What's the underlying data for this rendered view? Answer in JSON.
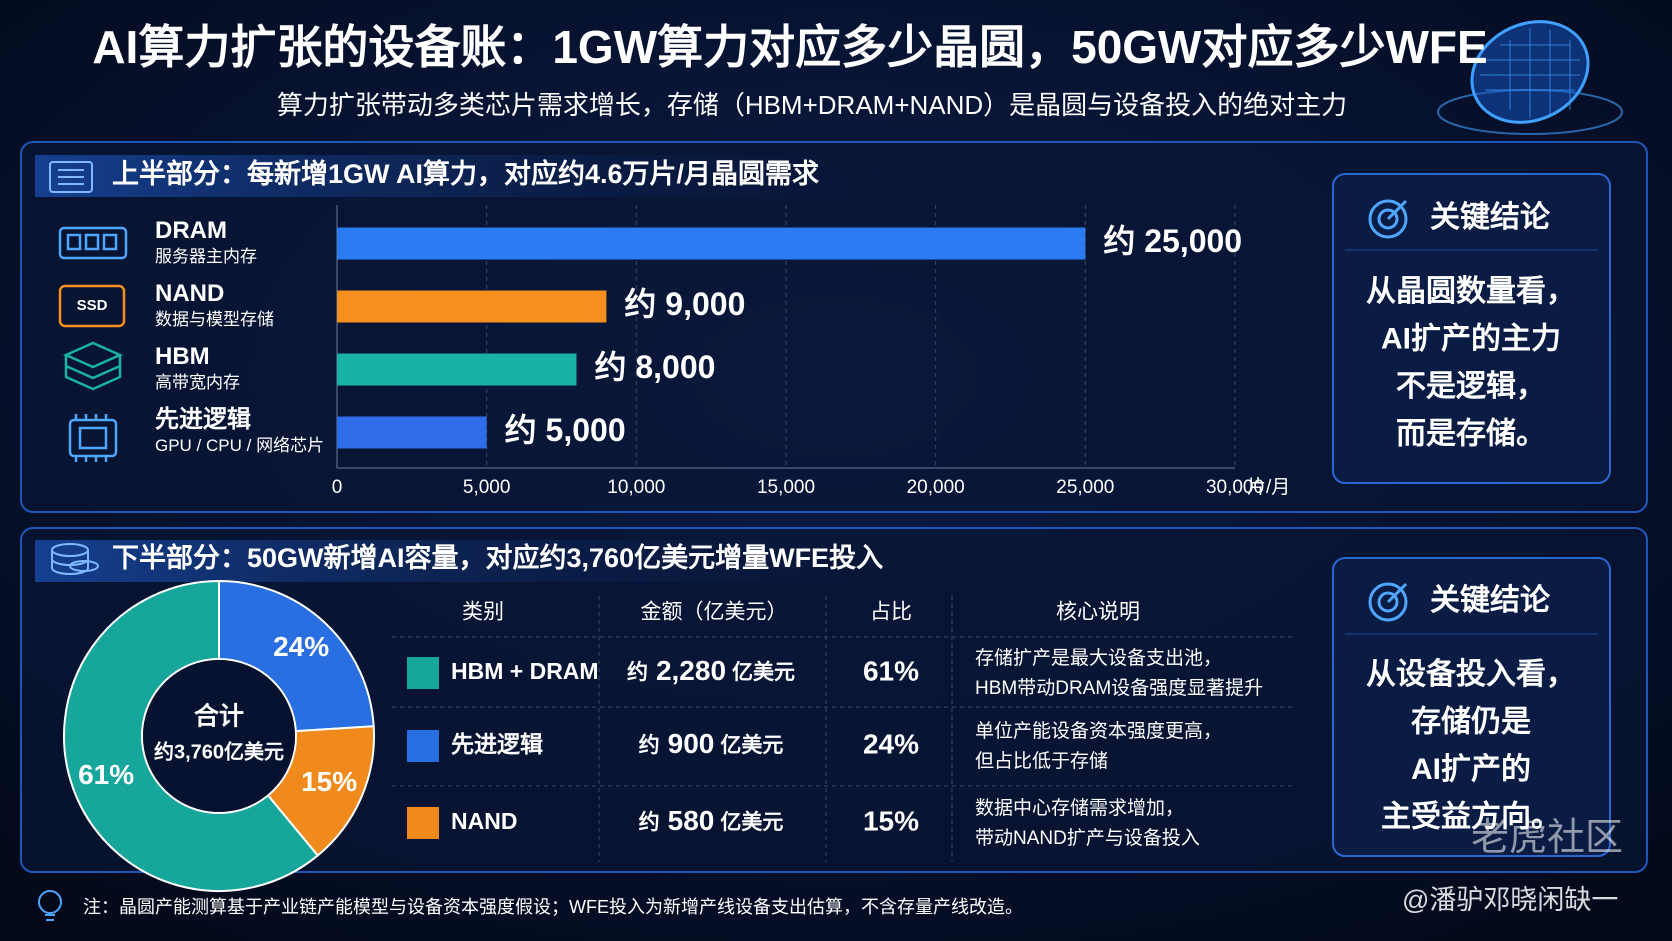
{
  "title": "AI算力扩张的设备账：1GW算力对应多少晶圆，50GW对应多少WFE",
  "subtitle": "算力扩张带动多类芯片需求增长，存储（HBM+DRAM+NAND）是晶圆与设备投入的绝对主力",
  "top_heading": "上半部分：每新增1GW AI算力，对应约4.6万片/月晶圆需求",
  "bottom_heading": "下半部分：50GW新增AI容量，对应约3,760亿美元增量WFE投入",
  "conclusion_top": {
    "title": "关键结论",
    "lines": [
      "从晶圆数量看，",
      "AI扩产的主力",
      "不是逻辑，",
      "而是存储。"
    ]
  },
  "conclusion_bottom": {
    "title": "关键结论",
    "lines": [
      "从设备投入看，",
      "存储仍是",
      "AI扩产的",
      "主受益方向。"
    ]
  },
  "chart_data": [
    {
      "type": "bar",
      "orientation": "horizontal",
      "categories": [
        "DRAM",
        "NAND",
        "HBM",
        "先进逻辑"
      ],
      "category_notes": [
        "服务器主内存",
        "数据与模型存储",
        "高带宽内存",
        "GPU / CPU / 网络芯片"
      ],
      "values": [
        25000,
        9000,
        8000,
        5000
      ],
      "value_labels": [
        "约 25,000",
        "约 9,000",
        "约 8,000",
        "约 5,000"
      ],
      "colors": [
        "#2b7cf2",
        "#f5901e",
        "#19b2a6",
        "#2f6ee8"
      ],
      "xlim": [
        0,
        30000
      ],
      "xticks": [
        0,
        {
          "value": 5000,
          "label": "5,000"
        },
        {
          "value": 10000,
          "label": "10,000"
        },
        {
          "value": 15000,
          "label": "15,000"
        },
        {
          "value": 20000,
          "label": "20,000"
        },
        {
          "value": 25000,
          "label": "25,000"
        },
        {
          "value": 30000,
          "label": "30,000"
        }
      ],
      "xlabel": "片/月",
      "grid": true
    },
    {
      "type": "pie",
      "categories": [
        "HBM + DRAM",
        "先进逻辑",
        "NAND"
      ],
      "values": [
        61,
        24,
        15
      ],
      "value_labels": [
        "61%",
        "24%",
        "15%"
      ],
      "colors": [
        "#17a69c",
        "#2a6fe2",
        "#f08a1c"
      ],
      "center_title": "合计",
      "center_label": "约3,760亿美元"
    }
  ],
  "table": {
    "headers": [
      "类别",
      "金额（亿美元）",
      "占比",
      "核心说明"
    ],
    "rows": [
      {
        "prefix": "约",
        "amount": "2,280",
        "unit": "亿美元",
        "note": [
          "存储扩产是最大设备支出池，",
          "HBM带动DRAM设备强度显著提升"
        ]
      },
      {
        "prefix": "约",
        "amount": "900",
        "unit": "亿美元",
        "note": [
          "单位产能设备资本强度更高，",
          "但占比低于存储"
        ]
      },
      {
        "prefix": "约",
        "amount": "580",
        "unit": "亿美元",
        "note": [
          "数据中心存储需求增加，",
          "带动NAND扩产与设备投入"
        ]
      }
    ]
  },
  "footnote": "注：晶圆产能测算基于产业链产能模型与设备资本强度假设；WFE投入为新增产线设备支出估算，不含存量产线改造。",
  "watermark": "老虎社区",
  "author": "@潘驴邓晓闲缺一"
}
